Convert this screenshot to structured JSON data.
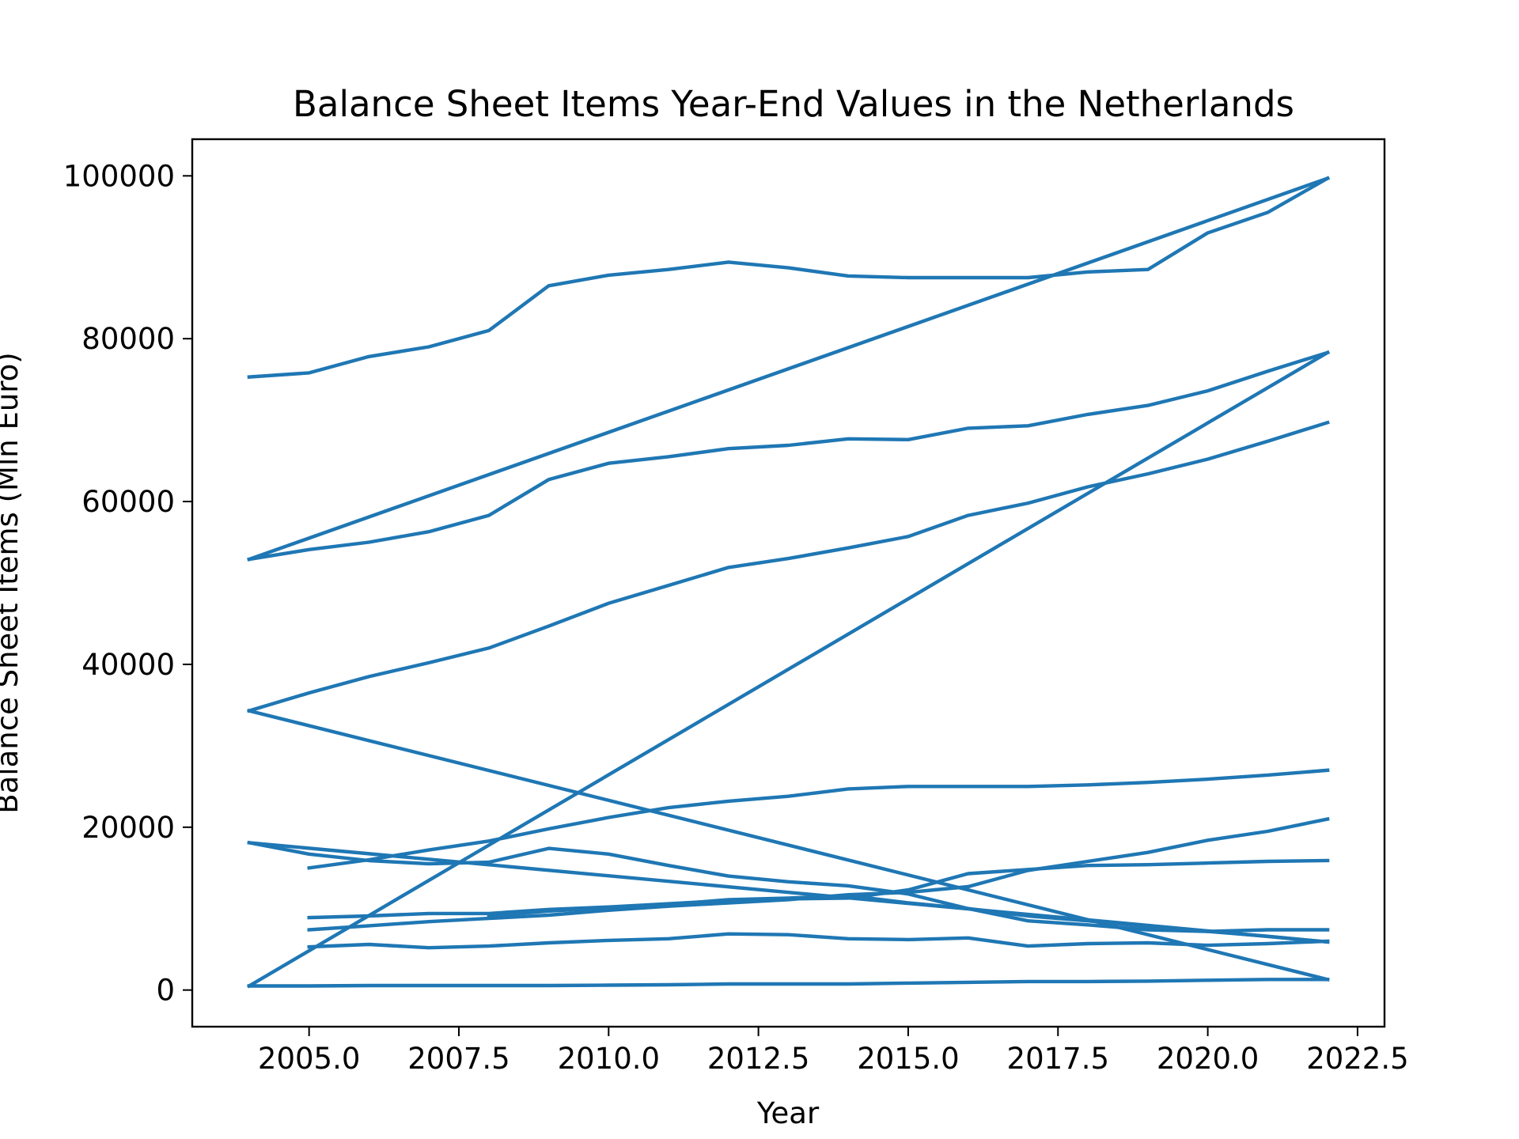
{
  "chart_data": {
    "type": "line",
    "title": "Balance Sheet Items Year-End Values in the Netherlands",
    "xlabel": "Year",
    "ylabel": "Balance Sheet Items (Mln Euro)",
    "xlim": [
      2003.05,
      2022.95
    ],
    "ylim": [
      -4500,
      104500
    ],
    "x_ticks": [
      2005.0,
      2007.5,
      2010.0,
      2012.5,
      2015.0,
      2017.5,
      2020.0,
      2022.5
    ],
    "x_tick_labels": [
      "2005.0",
      "2007.5",
      "2010.0",
      "2012.5",
      "2015.0",
      "2017.5",
      "2020.0",
      "2022.5"
    ],
    "y_ticks": [
      0,
      20000,
      40000,
      60000,
      80000,
      100000
    ],
    "y_tick_labels": [
      "0",
      "20000",
      "40000",
      "60000",
      "80000",
      "100000"
    ],
    "grid": false,
    "line_color": "#1f77b4",
    "series": [
      {
        "x": [
          2004,
          2005,
          2006,
          2007,
          2008,
          2009,
          2010,
          2011,
          2012,
          2013,
          2014,
          2015,
          2016,
          2017,
          2018,
          2019,
          2020,
          2021,
          2022
        ],
        "y": [
          75300,
          75800,
          77800,
          79000,
          81000,
          86500,
          87800,
          88500,
          89400,
          88700,
          87700,
          87500,
          87500,
          87500,
          88200,
          88500,
          93000,
          95500,
          99700
        ]
      },
      {
        "x": [
          2004,
          2022
        ],
        "y": [
          52900,
          99700
        ]
      },
      {
        "x": [
          2004,
          2005,
          2006,
          2007,
          2008,
          2009,
          2010,
          2011,
          2012,
          2013,
          2014,
          2015,
          2016,
          2017,
          2018,
          2019,
          2020,
          2021,
          2022
        ],
        "y": [
          52900,
          54100,
          55000,
          56300,
          58300,
          62700,
          64700,
          65500,
          66500,
          66900,
          67700,
          67600,
          69000,
          69300,
          70700,
          71800,
          73600,
          76000,
          78300
        ]
      },
      {
        "x": [
          2004,
          2022
        ],
        "y": [
          500,
          78300
        ]
      },
      {
        "x": [
          2004,
          2005,
          2006,
          2007,
          2008,
          2009,
          2010,
          2011,
          2012,
          2013,
          2014,
          2015,
          2016,
          2017,
          2018,
          2019,
          2020,
          2021,
          2022
        ],
        "y": [
          34300,
          36500,
          38500,
          40200,
          42000,
          44700,
          47500,
          49700,
          51900,
          53000,
          54300,
          55700,
          58300,
          59800,
          61800,
          63400,
          65200,
          67400,
          69700
        ]
      },
      {
        "x": [
          2004,
          2022
        ],
        "y": [
          34300,
          1300
        ]
      },
      {
        "x": [
          2005,
          2006,
          2007,
          2008,
          2009,
          2010,
          2011,
          2012,
          2013,
          2014,
          2015,
          2016,
          2017,
          2018,
          2019,
          2020,
          2021,
          2022
        ],
        "y": [
          15000,
          16000,
          17200,
          18300,
          19800,
          21200,
          22400,
          23200,
          23800,
          24700,
          25000,
          25000,
          25000,
          25200,
          25500,
          25900,
          26400,
          27000
        ]
      },
      {
        "x": [
          2004,
          2005,
          2006,
          2007,
          2008,
          2009,
          2010,
          2011,
          2012,
          2013,
          2014,
          2015,
          2016,
          2017,
          2018,
          2019,
          2020,
          2021,
          2022
        ],
        "y": [
          18100,
          16700,
          15900,
          15500,
          15700,
          17400,
          16700,
          15300,
          14000,
          13300,
          12800,
          11800,
          10000,
          8500,
          8000,
          7400,
          7200,
          6600,
          5900
        ]
      },
      {
        "x": [
          2004,
          2022
        ],
        "y": [
          18100,
          5900
        ]
      },
      {
        "x": [
          2005,
          2006,
          2007,
          2008,
          2009,
          2010,
          2011,
          2012,
          2013,
          2014,
          2015,
          2016,
          2017,
          2018,
          2019,
          2020,
          2021,
          2022
        ],
        "y": [
          8900,
          9100,
          9400,
          9400,
          9900,
          10200,
          10600,
          11000,
          11200,
          11300,
          12300,
          14300,
          14800,
          15300,
          15400,
          15600,
          15800,
          15900
        ]
      },
      {
        "x": [
          2005,
          2006,
          2007,
          2008,
          2009,
          2010,
          2011,
          2012,
          2013,
          2014,
          2015,
          2016,
          2017,
          2018,
          2019,
          2020,
          2021,
          2022
        ],
        "y": [
          7400,
          7900,
          8400,
          8800,
          9200,
          9800,
          10300,
          10700,
          11100,
          11700,
          12000,
          12700,
          14700,
          15800,
          16900,
          18400,
          19500,
          21000
        ]
      },
      {
        "x": [
          2008,
          2009,
          2010,
          2011,
          2012,
          2013,
          2014,
          2015,
          2016,
          2017,
          2018,
          2019,
          2020,
          2021,
          2022
        ],
        "y": [
          9100,
          9700,
          10100,
          10500,
          11100,
          11300,
          11600,
          10700,
          10000,
          9100,
          8500,
          7800,
          7200,
          7400,
          7400
        ]
      },
      {
        "x": [
          2005,
          2006,
          2007,
          2008,
          2009,
          2010,
          2011,
          2012,
          2013,
          2014,
          2015,
          2016,
          2017,
          2018,
          2019,
          2020,
          2021,
          2022
        ],
        "y": [
          5300,
          5600,
          5200,
          5400,
          5800,
          6100,
          6300,
          6900,
          6800,
          6300,
          6200,
          6400,
          5400,
          5700,
          5800,
          5500,
          5700,
          6000
        ]
      },
      {
        "x": [
          2004,
          2005,
          2006,
          2007,
          2008,
          2009,
          2010,
          2011,
          2012,
          2013,
          2014,
          2015,
          2016,
          2017,
          2018,
          2019,
          2020,
          2021,
          2022
        ],
        "y": [
          500,
          500,
          550,
          550,
          550,
          550,
          600,
          650,
          750,
          750,
          750,
          850,
          950,
          1050,
          1050,
          1100,
          1200,
          1300,
          1300
        ]
      }
    ]
  }
}
